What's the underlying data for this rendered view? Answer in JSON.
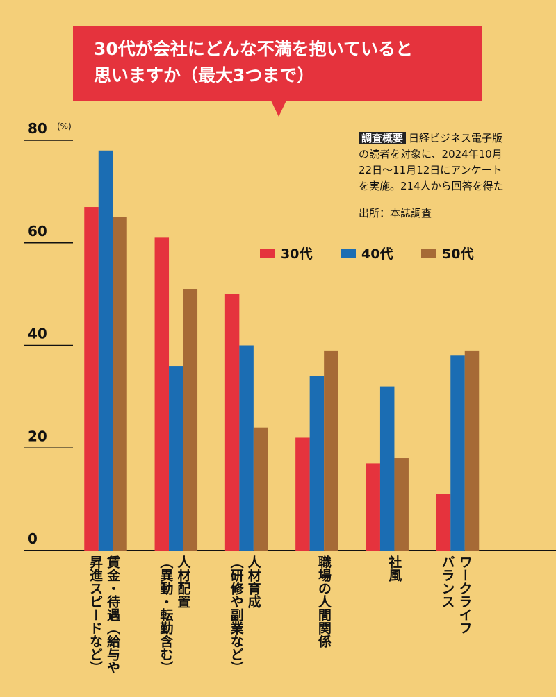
{
  "chart_data": {
    "type": "bar",
    "title": "30代が会社にどんな不満を抱いていると\n思いますか（最大3つまで）",
    "unit": "(%)",
    "note_label": "調査概要",
    "note": "日経ビジネス電子版\nの読者を対象に、2024年10月\n22日～11月12日にアンケート\nを実施。214人から回答を得た",
    "source": "出所：本誌調査",
    "categories": [
      "賃金・待遇（給与や\n昇進スピードなど）",
      "人材配置\n（異動・転勤含む）",
      "人材育成\n（研修や副業など）",
      "職場の人間関係",
      "社風",
      "ワークライフ\nバランス"
    ],
    "series": [
      {
        "name": "30代",
        "color": "#e5333d",
        "values": [
          67,
          61,
          50,
          22,
          17,
          11
        ]
      },
      {
        "name": "40代",
        "color": "#1b6db3",
        "values": [
          78,
          36,
          40,
          34,
          32,
          38
        ]
      },
      {
        "name": "50代",
        "color": "#a66a36",
        "values": [
          65,
          51,
          24,
          39,
          18,
          39
        ]
      }
    ],
    "ylim": [
      0,
      80
    ],
    "yticks": [
      0,
      20,
      40,
      60,
      80
    ]
  }
}
